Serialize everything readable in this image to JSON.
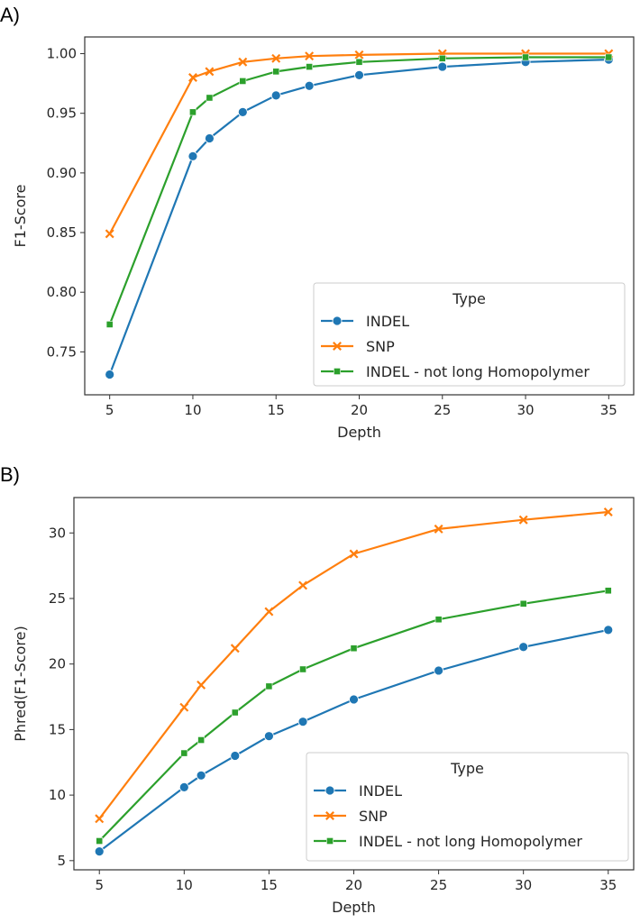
{
  "panels": [
    {
      "label": "A)",
      "chart_data": {
        "type": "line",
        "xlabel": "Depth",
        "ylabel": "F1-Score",
        "xlim": [
          3.5,
          36.5
        ],
        "ylim": [
          0.714,
          1.014
        ],
        "xticks": [
          5,
          10,
          15,
          20,
          25,
          30,
          35
        ],
        "xtick_labels": [
          "5",
          "10",
          "15",
          "20",
          "25",
          "30",
          "35"
        ],
        "yticks": [
          0.75,
          0.8,
          0.85,
          0.9,
          0.95,
          1.0
        ],
        "ytick_labels": [
          "0.75",
          "0.80",
          "0.85",
          "0.90",
          "0.95",
          "1.00"
        ],
        "grid": false,
        "legend": {
          "title": "Type",
          "placement": "lower right"
        },
        "x": [
          5,
          10,
          11,
          13,
          15,
          17,
          20,
          25,
          30,
          35
        ],
        "series": [
          {
            "name": "INDEL",
            "marker": "circle",
            "color": "#1f77b4",
            "values": [
              0.731,
              0.914,
              0.929,
              0.951,
              0.965,
              0.973,
              0.982,
              0.989,
              0.993,
              0.995
            ]
          },
          {
            "name": "SNP",
            "marker": "x",
            "color": "#ff7f0e",
            "values": [
              0.849,
              0.98,
              0.985,
              0.993,
              0.996,
              0.998,
              0.999,
              1.0,
              1.0,
              1.0
            ]
          },
          {
            "name": "INDEL - not long Homopolymer",
            "marker": "square",
            "color": "#2ca02c",
            "values": [
              0.773,
              0.951,
              0.963,
              0.977,
              0.985,
              0.989,
              0.993,
              0.996,
              0.997,
              0.997
            ]
          }
        ]
      }
    },
    {
      "label": "B)",
      "chart_data": {
        "type": "line",
        "xlabel": "Depth",
        "ylabel": "Phred(F1-Score)",
        "xlim": [
          3.5,
          36.5
        ],
        "ylim": [
          4.3,
          32.7
        ],
        "xticks": [
          5,
          10,
          15,
          20,
          25,
          30,
          35
        ],
        "xtick_labels": [
          "5",
          "10",
          "15",
          "20",
          "25",
          "30",
          "35"
        ],
        "yticks": [
          5,
          10,
          15,
          20,
          25,
          30
        ],
        "ytick_labels": [
          "5",
          "10",
          "15",
          "20",
          "25",
          "30"
        ],
        "grid": false,
        "legend": {
          "title": "Type",
          "placement": "lower right"
        },
        "x": [
          5,
          10,
          11,
          13,
          15,
          17,
          20,
          25,
          30,
          35
        ],
        "series": [
          {
            "name": "INDEL",
            "marker": "circle",
            "color": "#1f77b4",
            "values": [
              5.7,
              10.6,
              11.5,
              13.0,
              14.5,
              15.6,
              17.3,
              19.5,
              21.3,
              22.6
            ]
          },
          {
            "name": "SNP",
            "marker": "x",
            "color": "#ff7f0e",
            "values": [
              8.2,
              16.7,
              18.4,
              21.2,
              24.0,
              26.0,
              28.4,
              30.3,
              31.0,
              31.6
            ]
          },
          {
            "name": "INDEL - not long Homopolymer",
            "marker": "square",
            "color": "#2ca02c",
            "values": [
              6.5,
              13.2,
              14.2,
              16.3,
              18.3,
              19.6,
              21.2,
              23.4,
              24.6,
              25.6
            ]
          }
        ]
      }
    }
  ]
}
